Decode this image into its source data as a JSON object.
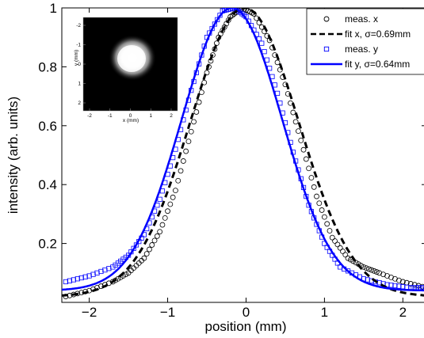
{
  "chart_data": {
    "type": "line",
    "xlabel": "position (mm)",
    "ylabel": "intensity (arb. units)",
    "xlim": [
      -2.35,
      2.3
    ],
    "ylim": [
      0,
      1.0
    ],
    "xticks": [
      -2,
      -1,
      0,
      1,
      2
    ],
    "xtick_labels": [
      "−2",
      "−1",
      "0",
      "1",
      "2"
    ],
    "yticks": [
      0.2,
      0.4,
      0.6,
      0.8,
      1
    ],
    "ytick_labels": [
      "0.2",
      "0.4",
      "0.6",
      "0.8",
      "1"
    ],
    "grid": false,
    "legend_position": "top-right",
    "series": [
      {
        "name": "meas. x",
        "style": "circle-markers",
        "color": "#000000",
        "x": [
          -2.3,
          -2.0,
          -1.7,
          -1.5,
          -1.3,
          -1.1,
          -0.9,
          -0.7,
          -0.5,
          -0.35,
          -0.2,
          -0.05,
          0.1,
          0.3,
          0.5,
          0.7,
          0.9,
          1.1,
          1.3,
          1.5,
          1.7,
          2.0,
          2.3
        ],
        "y": [
          0.02,
          0.04,
          0.07,
          0.1,
          0.15,
          0.24,
          0.38,
          0.58,
          0.78,
          0.9,
          0.97,
          1.0,
          0.98,
          0.89,
          0.74,
          0.55,
          0.36,
          0.22,
          0.15,
          0.12,
          0.1,
          0.07,
          0.05
        ]
      },
      {
        "name": "fit x, σ=0.69mm",
        "style": "dashed",
        "color": "#000000",
        "center": -0.02,
        "sigma": 0.69,
        "baseline": 0.02
      },
      {
        "name": "meas. y",
        "style": "square-markers",
        "color": "#0000ff",
        "x": [
          -2.3,
          -2.0,
          -1.7,
          -1.5,
          -1.3,
          -1.1,
          -0.9,
          -0.7,
          -0.5,
          -0.3,
          -0.15,
          0.0,
          0.2,
          0.4,
          0.6,
          0.8,
          1.0,
          1.2,
          1.5,
          1.8,
          2.1,
          2.3
        ],
        "y": [
          0.07,
          0.09,
          0.12,
          0.16,
          0.23,
          0.35,
          0.52,
          0.72,
          0.9,
          0.99,
          1.0,
          0.97,
          0.88,
          0.71,
          0.51,
          0.33,
          0.2,
          0.12,
          0.08,
          0.06,
          0.05,
          0.05
        ]
      },
      {
        "name": "fit y, σ=0.64mm",
        "style": "solid",
        "color": "#0000ff",
        "center": -0.18,
        "sigma": 0.64,
        "baseline": 0.04
      }
    ],
    "inset": {
      "description": "beam profile",
      "xlabel": "x (mm)",
      "ylabel": "y (mm)",
      "xtick_labels": [
        "-2",
        "-1",
        "0",
        "1",
        "2"
      ],
      "ytick_labels": [
        "-2",
        "-1",
        "0",
        "1",
        "2"
      ]
    }
  }
}
